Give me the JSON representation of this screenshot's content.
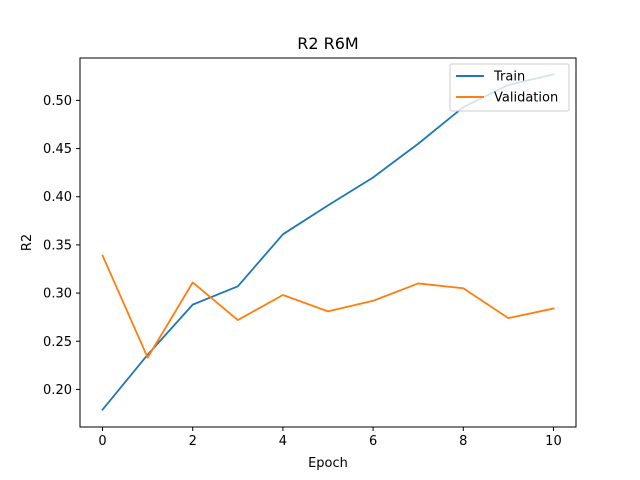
{
  "chart_data": {
    "type": "line",
    "title": "R2 R6M",
    "xlabel": "Epoch",
    "ylabel": "R2",
    "x": [
      0,
      1,
      2,
      3,
      4,
      5,
      6,
      7,
      8,
      9,
      10
    ],
    "xlim": [
      -0.5,
      10.5
    ],
    "ylim": [
      0.161,
      0.544
    ],
    "xticks": [
      0,
      2,
      4,
      6,
      8,
      10
    ],
    "yticks": [
      0.2,
      0.25,
      0.3,
      0.35,
      0.4,
      0.45,
      0.5
    ],
    "ytick_labels": [
      "0.20",
      "0.25",
      "0.30",
      "0.35",
      "0.40",
      "0.45",
      "0.50"
    ],
    "grid": false,
    "legend_position": "top-right",
    "series": [
      {
        "name": "Train",
        "color": "#1f77b4",
        "values": [
          0.179,
          0.236,
          0.288,
          0.307,
          0.361,
          0.391,
          0.42,
          0.455,
          0.493,
          0.516,
          0.527
        ]
      },
      {
        "name": "Validation",
        "color": "#ff7f0e",
        "values": [
          0.339,
          0.233,
          0.311,
          0.272,
          0.298,
          0.281,
          0.292,
          0.31,
          0.305,
          0.274,
          0.284
        ]
      }
    ]
  }
}
